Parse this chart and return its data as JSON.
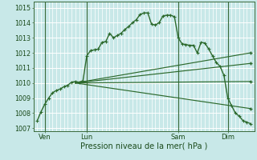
{
  "bg_color": "#c8e8e8",
  "plot_bg_color": "#c8e8e8",
  "grid_color": "#ffffff",
  "line_color": "#2d6a2d",
  "marker_color": "#2d6a2d",
  "title": "Pression niveau de la mer( hPa )",
  "ylabel_ticks": [
    1007,
    1008,
    1009,
    1010,
    1011,
    1012,
    1013,
    1014,
    1015
  ],
  "ylim": [
    1006.8,
    1015.4
  ],
  "xlim": [
    -1,
    57
  ],
  "xtick_labels": [
    "Ven",
    "Lun",
    "Sam",
    "Dim"
  ],
  "xtick_positions": [
    2,
    13,
    37,
    50
  ],
  "vline_positions": [
    2,
    13,
    37,
    50
  ],
  "series1_x": [
    0,
    1,
    2,
    3,
    4,
    5,
    6,
    7,
    8,
    9,
    10,
    11,
    12,
    13,
    14,
    15,
    16,
    17,
    18,
    19,
    20,
    21,
    22,
    23,
    24,
    25,
    26,
    27,
    28,
    29,
    30,
    31,
    32,
    33,
    34,
    35,
    36,
    37,
    38,
    39,
    40,
    41,
    42,
    43,
    44,
    45,
    46,
    47,
    48,
    49,
    50,
    51,
    52,
    53,
    54,
    55,
    56
  ],
  "series1_y": [
    1007.5,
    1008.1,
    1008.6,
    1009.0,
    1009.35,
    1009.5,
    1009.6,
    1009.75,
    1009.85,
    1010.05,
    1010.1,
    1010.05,
    1010.15,
    1011.8,
    1012.15,
    1012.2,
    1012.25,
    1012.7,
    1012.75,
    1013.3,
    1013.0,
    1013.15,
    1013.3,
    1013.55,
    1013.75,
    1014.0,
    1014.2,
    1014.55,
    1014.65,
    1014.65,
    1013.9,
    1013.85,
    1014.0,
    1014.45,
    1014.5,
    1014.5,
    1014.4,
    1013.0,
    1012.6,
    1012.55,
    1012.5,
    1012.5,
    1012.0,
    1012.7,
    1012.65,
    1012.25,
    1011.8,
    1011.35,
    1011.1,
    1010.5,
    1009.0,
    1008.5,
    1008.0,
    1007.8,
    1007.5,
    1007.4,
    1007.3
  ],
  "fan_origin_x": 10,
  "fan_origin_y": 1010.0,
  "fan_lines": [
    [
      10,
      1010.0,
      56,
      1012.0
    ],
    [
      10,
      1010.0,
      56,
      1011.3
    ],
    [
      10,
      1010.0,
      56,
      1010.1
    ],
    [
      10,
      1010.0,
      56,
      1008.3
    ]
  ]
}
